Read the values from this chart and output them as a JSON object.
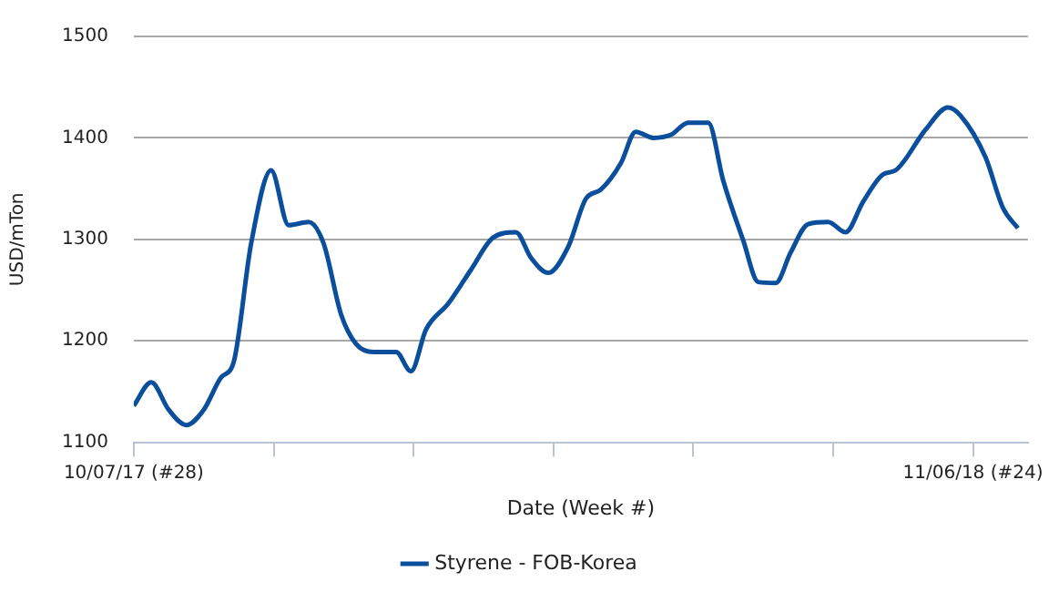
{
  "chart_data": {
    "type": "line",
    "xlabel": "Date (Week #)",
    "ylabel": "USD/mTon",
    "xlim": [
      "2017-07-10",
      "2018-07-03"
    ],
    "ylim": [
      1100,
      1500
    ],
    "yticks": [
      1100,
      1200,
      1300,
      1400,
      1500
    ],
    "xticks": [
      {
        "value": "2017-07-10",
        "label": "10/07/17 (#28)"
      },
      {
        "value": "2017-09-04",
        "label": null
      },
      {
        "value": "2017-10-30",
        "label": null
      },
      {
        "value": "2017-12-25",
        "label": null
      },
      {
        "value": "2018-02-19",
        "label": null
      },
      {
        "value": "2018-04-16",
        "label": null
      },
      {
        "value": "2018-06-11",
        "label": "11/06/18 (#24)"
      }
    ],
    "grid": "y",
    "legend": "bottom",
    "marker": "none",
    "line_style": "solid",
    "series": [
      {
        "name": "Styrene - FOB-Korea",
        "color": "#0b4f9c",
        "x": [
          "2017-07-10",
          "2017-07-17",
          "2017-07-24",
          "2017-07-31",
          "2017-08-07",
          "2017-08-14",
          "2017-08-19",
          "2017-08-26",
          "2017-09-03",
          "2017-09-10",
          "2017-09-18",
          "2017-09-24",
          "2017-10-01",
          "2017-10-07",
          "2017-10-14",
          "2017-10-23",
          "2017-10-29",
          "2017-11-04",
          "2017-11-13",
          "2017-11-22",
          "2017-12-01",
          "2017-12-10",
          "2017-12-16",
          "2017-12-23",
          "2017-12-31",
          "2018-01-07",
          "2018-01-13",
          "2018-01-21",
          "2018-01-27",
          "2018-02-03",
          "2018-02-10",
          "2018-02-17",
          "2018-02-25",
          "2018-03-03",
          "2018-03-11",
          "2018-03-17",
          "2018-03-24",
          "2018-03-30",
          "2018-04-06",
          "2018-04-14",
          "2018-04-21",
          "2018-04-28",
          "2018-05-06",
          "2018-05-11",
          "2018-05-23",
          "2018-06-01",
          "2018-06-06",
          "2018-06-16",
          "2018-06-23",
          "2018-06-29"
        ],
        "values": [
          1136,
          1159,
          1132,
          1117,
          1132,
          1164,
          1179,
          1296,
          1368,
          1314,
          1317,
          1296,
          1226,
          1197,
          1189,
          1189,
          1170,
          1211,
          1237,
          1270,
          1302,
          1307,
          1282,
          1267,
          1293,
          1340,
          1349,
          1375,
          1406,
          1400,
          1403,
          1415,
          1415,
          1358,
          1299,
          1258,
          1257,
          1287,
          1315,
          1317,
          1307,
          1337,
          1364,
          1368,
          1408,
          1430,
          1422,
          1381,
          1331,
          1311
        ]
      }
    ]
  }
}
